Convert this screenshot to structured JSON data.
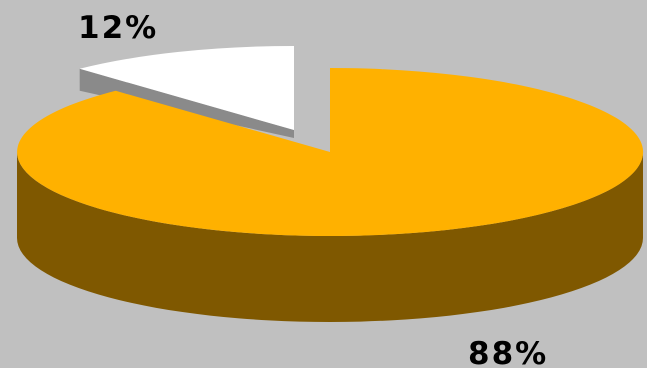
{
  "chart_data": {
    "type": "pie",
    "style": "3d-exploded",
    "slices": [
      {
        "value": 88,
        "label": "88%",
        "color": "#ffb100",
        "side_color": "#7f5800"
      },
      {
        "value": 12,
        "label": "12%",
        "color": "#ffffff",
        "side_color": "#8a8a8a"
      }
    ],
    "title": "",
    "legend": "none",
    "background": "#c0c0c0"
  }
}
